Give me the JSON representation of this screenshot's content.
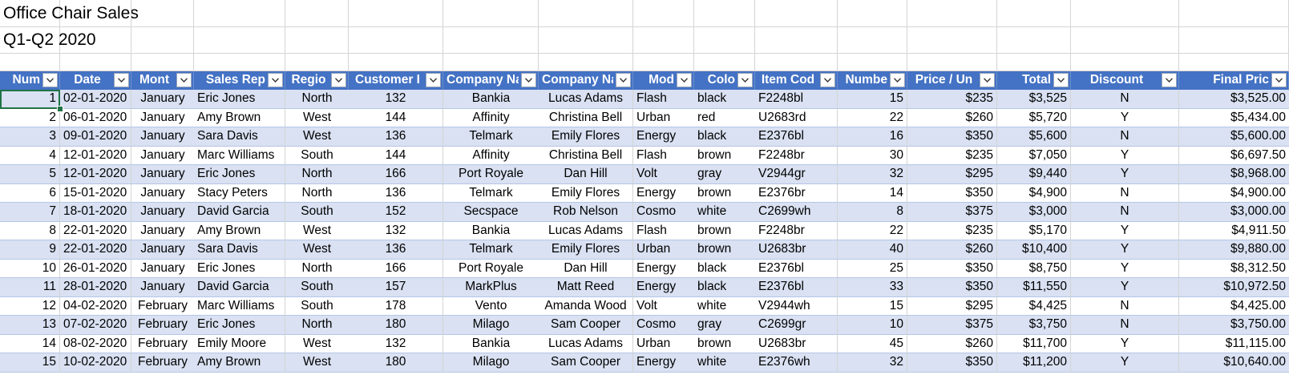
{
  "sheet": {
    "title": "Office Chair Sales",
    "subtitle": "Q1-Q2 2020",
    "columns": [
      {
        "label": "Num",
        "align": "r"
      },
      {
        "label": "Date",
        "align": "c"
      },
      {
        "label": "Mont",
        "align": "c"
      },
      {
        "label": "Sales Rep",
        "align": "r"
      },
      {
        "label": "Regio",
        "align": "c"
      },
      {
        "label": "Customer I",
        "align": "c"
      },
      {
        "label": "Company Na",
        "align": "c"
      },
      {
        "label": "Company Nar",
        "align": "c"
      },
      {
        "label": "Mod",
        "align": "r"
      },
      {
        "label": "Colo",
        "align": "r"
      },
      {
        "label": "Item Cod",
        "align": "c"
      },
      {
        "label": "Numbe",
        "align": "r"
      },
      {
        "label": "Price / Un",
        "align": "c"
      },
      {
        "label": "Total",
        "align": "r"
      },
      {
        "label": "Discount",
        "align": "c"
      },
      {
        "label": "Final Pric",
        "align": "r"
      }
    ],
    "rows": [
      [
        "1",
        "02-01-2020",
        "January",
        "Eric Jones",
        "North",
        "132",
        "Bankia",
        "Lucas Adams",
        "Flash",
        "black",
        "F2248bl",
        "15",
        "$235",
        "$3,525",
        "N",
        "$3,525.00"
      ],
      [
        "2",
        "06-01-2020",
        "January",
        "Amy Brown",
        "West",
        "144",
        "Affinity",
        "Christina Bell",
        "Urban",
        "red",
        "U2683rd",
        "22",
        "$260",
        "$5,720",
        "Y",
        "$5,434.00"
      ],
      [
        "3",
        "09-01-2020",
        "January",
        "Sara Davis",
        "West",
        "136",
        "Telmark",
        "Emily Flores",
        "Energy",
        "black",
        "E2376bl",
        "16",
        "$350",
        "$5,600",
        "N",
        "$5,600.00"
      ],
      [
        "4",
        "12-01-2020",
        "January",
        "Marc Williams",
        "South",
        "144",
        "Affinity",
        "Christina Bell",
        "Flash",
        "brown",
        "F2248br",
        "30",
        "$235",
        "$7,050",
        "Y",
        "$6,697.50"
      ],
      [
        "5",
        "12-01-2020",
        "January",
        "Eric Jones",
        "North",
        "166",
        "Port Royale",
        "Dan Hill",
        "Volt",
        "gray",
        "V2944gr",
        "32",
        "$295",
        "$9,440",
        "Y",
        "$8,968.00"
      ],
      [
        "6",
        "15-01-2020",
        "January",
        "Stacy Peters",
        "North",
        "136",
        "Telmark",
        "Emily Flores",
        "Energy",
        "brown",
        "E2376br",
        "14",
        "$350",
        "$4,900",
        "N",
        "$4,900.00"
      ],
      [
        "7",
        "18-01-2020",
        "January",
        "David Garcia",
        "South",
        "152",
        "Secspace",
        "Rob Nelson",
        "Cosmo",
        "white",
        "C2699wh",
        "8",
        "$375",
        "$3,000",
        "N",
        "$3,000.00"
      ],
      [
        "8",
        "22-01-2020",
        "January",
        "Amy Brown",
        "West",
        "132",
        "Bankia",
        "Lucas Adams",
        "Flash",
        "brown",
        "F2248br",
        "22",
        "$235",
        "$5,170",
        "Y",
        "$4,911.50"
      ],
      [
        "9",
        "22-01-2020",
        "January",
        "Sara Davis",
        "West",
        "136",
        "Telmark",
        "Emily Flores",
        "Urban",
        "brown",
        "U2683br",
        "40",
        "$260",
        "$10,400",
        "Y",
        "$9,880.00"
      ],
      [
        "10",
        "26-01-2020",
        "January",
        "Eric Jones",
        "North",
        "166",
        "Port Royale",
        "Dan Hill",
        "Energy",
        "black",
        "E2376bl",
        "25",
        "$350",
        "$8,750",
        "Y",
        "$8,312.50"
      ],
      [
        "11",
        "28-01-2020",
        "January",
        "David Garcia",
        "South",
        "157",
        "MarkPlus",
        "Matt Reed",
        "Energy",
        "black",
        "E2376bl",
        "33",
        "$350",
        "$11,550",
        "Y",
        "$10,972.50"
      ],
      [
        "12",
        "04-02-2020",
        "February",
        "Marc Williams",
        "South",
        "178",
        "Vento",
        "Amanda Wood",
        "Volt",
        "white",
        "V2944wh",
        "15",
        "$295",
        "$4,425",
        "N",
        "$4,425.00"
      ],
      [
        "13",
        "07-02-2020",
        "February",
        "Eric Jones",
        "North",
        "180",
        "Milago",
        "Sam Cooper",
        "Cosmo",
        "gray",
        "C2699gr",
        "10",
        "$375",
        "$3,750",
        "N",
        "$3,750.00"
      ],
      [
        "14",
        "08-02-2020",
        "February",
        "Emily Moore",
        "West",
        "132",
        "Bankia",
        "Lucas Adams",
        "Urban",
        "brown",
        "U2683br",
        "45",
        "$260",
        "$11,700",
        "Y",
        "$11,115.00"
      ],
      [
        "15",
        "10-02-2020",
        "February",
        "Amy Brown",
        "West",
        "180",
        "Milago",
        "Sam Cooper",
        "Energy",
        "white",
        "E2376wh",
        "32",
        "$350",
        "$11,200",
        "Y",
        "$10,640.00"
      ]
    ],
    "colors": {
      "header_bg": "#4472c4",
      "band_bg": "#d9e1f2",
      "selection": "#217346"
    },
    "filter_icon": "chevron-down-icon"
  }
}
